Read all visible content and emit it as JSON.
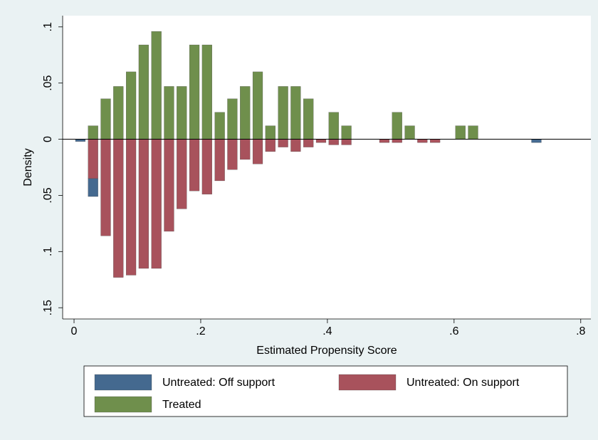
{
  "chart_data": {
    "type": "histogram",
    "x_label": "Estimated Propensity Score",
    "y_label": "Density",
    "bins": [
      0,
      0.02,
      0.04,
      0.06,
      0.08,
      0.1,
      0.12,
      0.14,
      0.16,
      0.18,
      0.2,
      0.22,
      0.24,
      0.26,
      0.28,
      0.3,
      0.32,
      0.34,
      0.36,
      0.38,
      0.4,
      0.42,
      0.44,
      0.46,
      0.48,
      0.5,
      0.52,
      0.54,
      0.56,
      0.58,
      0.6,
      0.62,
      0.64,
      0.66,
      0.68,
      0.7,
      0.72,
      0.74
    ],
    "series": [
      {
        "name": "Untreated: Off support",
        "color": "#44698f",
        "values": [
          -0.002,
          -0.016,
          0,
          0,
          0,
          0,
          0,
          0,
          0,
          0,
          0,
          0,
          0,
          0,
          0,
          0,
          0,
          0,
          0,
          0,
          0,
          0,
          0,
          0,
          0,
          0,
          0,
          0,
          0,
          0,
          0,
          0,
          0,
          0,
          0,
          0,
          -0.003
        ]
      },
      {
        "name": "Untreated: On support",
        "color": "#a8525c",
        "values": [
          0,
          -0.035,
          -0.086,
          -0.123,
          -0.121,
          -0.115,
          -0.115,
          -0.082,
          -0.062,
          -0.046,
          -0.049,
          -0.037,
          -0.027,
          -0.018,
          -0.022,
          -0.011,
          -0.007,
          -0.011,
          -0.007,
          -0.003,
          -0.005,
          -0.005,
          0,
          0,
          -0.003,
          -0.003,
          0,
          -0.003,
          -0.003,
          0,
          0,
          0,
          0,
          0,
          0,
          0,
          0
        ]
      },
      {
        "name": "Treated",
        "color": "#6f8f4c",
        "values": [
          0,
          0.012,
          0.036,
          0.047,
          0.06,
          0.084,
          0.096,
          0.047,
          0.047,
          0.084,
          0.084,
          0.024,
          0.036,
          0.047,
          0.06,
          0.012,
          0.047,
          0.047,
          0.036,
          0,
          0.024,
          0.012,
          0,
          0,
          0,
          0.024,
          0.012,
          0,
          0,
          0,
          0.012,
          0.012,
          0,
          0,
          0,
          0,
          0
        ]
      }
    ],
    "xlim": [
      -0.018,
      0.816
    ],
    "xticks": [
      0,
      {
        "value": 0.2,
        "label": ".2"
      },
      {
        "value": 0.4,
        "label": ".4"
      },
      {
        "value": 0.6,
        "label": ".6"
      },
      {
        "value": 0.8,
        "label": ".8"
      }
    ],
    "ylim": [
      -0.16,
      0.11
    ],
    "yticks": [
      {
        "value": 0.1,
        "label": ".1"
      },
      {
        "value": 0.05,
        "label": ".05"
      },
      0,
      {
        "value": -0.05,
        "label": ".05"
      },
      {
        "value": -0.1,
        "label": ".1"
      },
      {
        "value": -0.15,
        "label": ".15"
      }
    ]
  }
}
